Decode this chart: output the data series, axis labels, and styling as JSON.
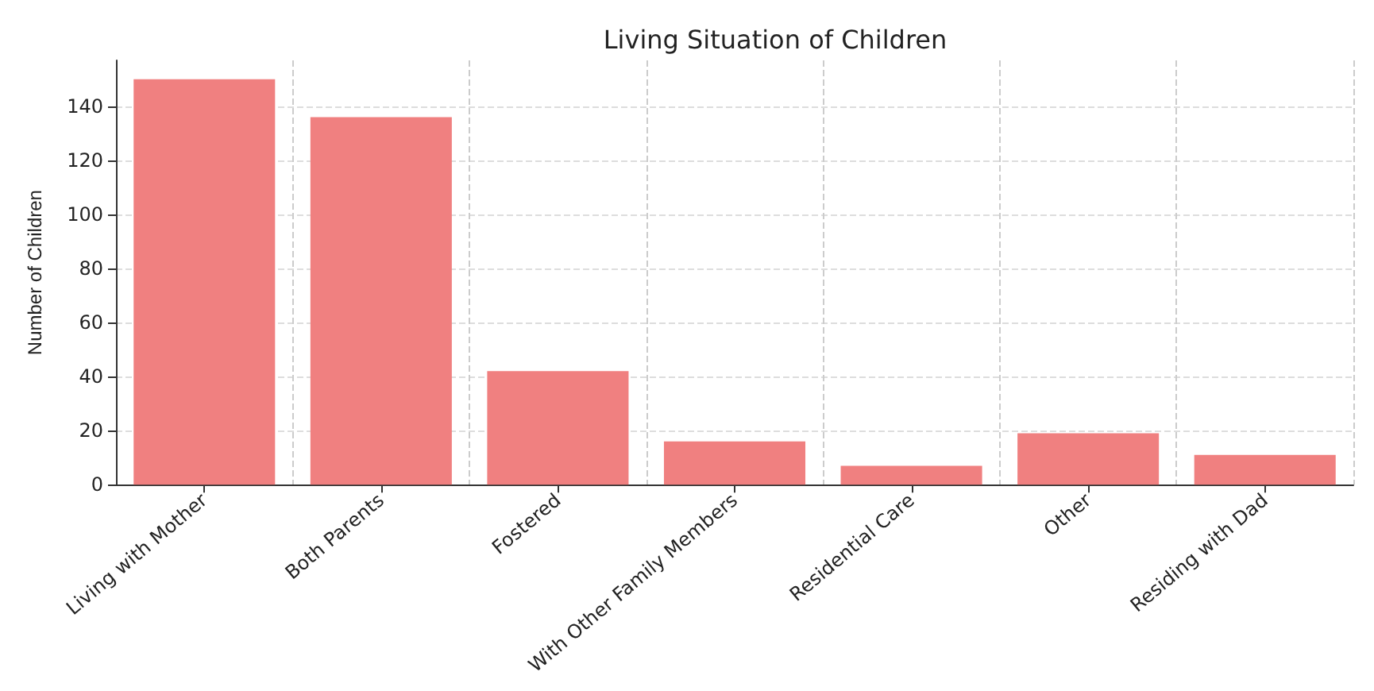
{
  "chart_data": {
    "type": "bar",
    "title": "Living Situation of Children",
    "ylabel": "Number of Children",
    "categories": [
      "Living with Mother",
      "Both Parents",
      "Fostered",
      "With Other Family Members",
      "Residential Care",
      "Other",
      "Residing with Dad"
    ],
    "values": [
      150,
      136,
      42,
      16,
      7,
      19,
      11
    ],
    "color": "#f08080",
    "ylim": [
      0,
      157
    ],
    "yticks": [
      0,
      20,
      40,
      60,
      80,
      100,
      120,
      140
    ],
    "grid": true
  }
}
